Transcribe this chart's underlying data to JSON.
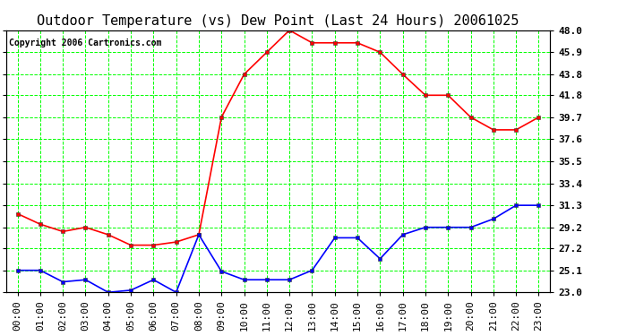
{
  "title": "Outdoor Temperature (vs) Dew Point (Last 24 Hours) 20061025",
  "copyright": "Copyright 2006 Cartronics.com",
  "x_labels": [
    "00:00",
    "01:00",
    "02:00",
    "03:00",
    "04:00",
    "05:00",
    "06:00",
    "07:00",
    "08:00",
    "09:00",
    "10:00",
    "11:00",
    "12:00",
    "13:00",
    "14:00",
    "15:00",
    "16:00",
    "17:00",
    "18:00",
    "19:00",
    "20:00",
    "21:00",
    "22:00",
    "23:00"
  ],
  "temp_data": [
    30.5,
    29.5,
    28.8,
    29.2,
    28.5,
    27.5,
    27.5,
    27.8,
    28.5,
    39.7,
    43.8,
    45.9,
    48.0,
    46.8,
    46.8,
    46.8,
    45.9,
    43.8,
    41.8,
    41.8,
    39.7,
    38.5,
    38.5,
    39.7
  ],
  "dew_data": [
    25.1,
    25.1,
    24.0,
    24.2,
    23.0,
    23.2,
    24.2,
    23.0,
    28.5,
    25.0,
    24.2,
    24.2,
    24.2,
    25.1,
    28.2,
    28.2,
    26.2,
    28.5,
    29.2,
    29.2,
    29.2,
    30.0,
    31.3,
    31.3
  ],
  "temp_color": "#ff0000",
  "dew_color": "#0000ff",
  "grid_color": "#00ff00",
  "bg_color": "#ffffff",
  "ylim_min": 23.0,
  "ylim_max": 48.0,
  "yticks": [
    23.0,
    25.1,
    27.2,
    29.2,
    31.3,
    33.4,
    35.5,
    37.6,
    39.7,
    41.8,
    43.8,
    45.9,
    48.0
  ],
  "ytick_labels": [
    "23.0",
    "25.1",
    "27.2",
    "29.2",
    "31.3",
    "33.4",
    "35.5",
    "37.6",
    "39.7",
    "41.8",
    "43.8",
    "45.9",
    "48.0"
  ],
  "title_fontsize": 11,
  "copyright_fontsize": 7,
  "tick_fontsize": 8,
  "line_width": 1.2,
  "marker_size": 3
}
